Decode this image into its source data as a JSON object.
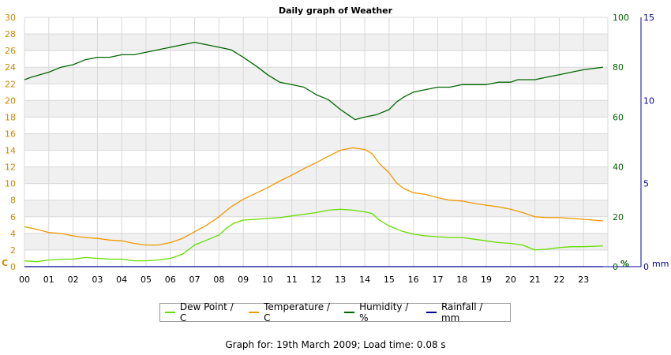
{
  "chart_data": {
    "type": "line",
    "title": "Daily graph of Weather",
    "x_ticks": [
      "00",
      "01",
      "02",
      "03",
      "04",
      "05",
      "06",
      "07",
      "08",
      "09",
      "10",
      "11",
      "12",
      "13",
      "14",
      "15",
      "16",
      "17",
      "18",
      "19",
      "20",
      "21",
      "22",
      "23"
    ],
    "axes": {
      "left": {
        "unit_label": "C",
        "ticks": [
          "0",
          "2",
          "4",
          "6",
          "8",
          "10",
          "12",
          "14",
          "16",
          "18",
          "20",
          "22",
          "24",
          "26",
          "28",
          "30"
        ],
        "range": [
          0,
          30
        ],
        "color": "#cc8800"
      },
      "right1": {
        "unit_label": "%",
        "ticks": [
          "0",
          "20",
          "40",
          "60",
          "80",
          "100"
        ],
        "range": [
          0,
          100
        ],
        "color": "#006600"
      },
      "right2": {
        "unit_label": "mm",
        "ticks": [
          "0",
          "5",
          "10",
          "15"
        ],
        "range": [
          0,
          15
        ],
        "color": "#000099"
      }
    },
    "series": [
      {
        "name": "Dew Point / C",
        "axis": "left",
        "color": "#66dd00",
        "points": [
          [
            0,
            0.7
          ],
          [
            0.5,
            0.6
          ],
          [
            1,
            0.8
          ],
          [
            1.5,
            0.9
          ],
          [
            2,
            0.9
          ],
          [
            2.5,
            1.1
          ],
          [
            3,
            1.0
          ],
          [
            3.5,
            0.9
          ],
          [
            4,
            0.9
          ],
          [
            4.5,
            0.7
          ],
          [
            5,
            0.7
          ],
          [
            5.5,
            0.8
          ],
          [
            6,
            1.0
          ],
          [
            6.5,
            1.5
          ],
          [
            7,
            2.6
          ],
          [
            7.5,
            3.2
          ],
          [
            8,
            3.8
          ],
          [
            8.3,
            4.6
          ],
          [
            8.6,
            5.2
          ],
          [
            9,
            5.6
          ],
          [
            9.5,
            5.7
          ],
          [
            10,
            5.8
          ],
          [
            10.5,
            5.9
          ],
          [
            11,
            6.1
          ],
          [
            11.5,
            6.3
          ],
          [
            12,
            6.5
          ],
          [
            12.5,
            6.8
          ],
          [
            13,
            6.9
          ],
          [
            13.5,
            6.8
          ],
          [
            14,
            6.6
          ],
          [
            14.3,
            6.4
          ],
          [
            14.6,
            5.6
          ],
          [
            15,
            4.9
          ],
          [
            15.5,
            4.3
          ],
          [
            16,
            3.9
          ],
          [
            16.5,
            3.7
          ],
          [
            17,
            3.6
          ],
          [
            17.5,
            3.5
          ],
          [
            18,
            3.5
          ],
          [
            18.5,
            3.3
          ],
          [
            19,
            3.1
          ],
          [
            19.5,
            2.9
          ],
          [
            20,
            2.8
          ],
          [
            20.5,
            2.6
          ],
          [
            21,
            2.0
          ],
          [
            21.5,
            2.1
          ],
          [
            22,
            2.3
          ],
          [
            22.5,
            2.4
          ],
          [
            23,
            2.4
          ],
          [
            23.8,
            2.5
          ]
        ]
      },
      {
        "name": "Temperature / C",
        "axis": "left",
        "color": "#ee9900",
        "points": [
          [
            0,
            4.8
          ],
          [
            0.5,
            4.5
          ],
          [
            1,
            4.1
          ],
          [
            1.5,
            4.0
          ],
          [
            2,
            3.7
          ],
          [
            2.5,
            3.5
          ],
          [
            3,
            3.4
          ],
          [
            3.5,
            3.2
          ],
          [
            4,
            3.1
          ],
          [
            4.5,
            2.8
          ],
          [
            5,
            2.6
          ],
          [
            5.5,
            2.6
          ],
          [
            6,
            2.9
          ],
          [
            6.5,
            3.4
          ],
          [
            7,
            4.2
          ],
          [
            7.5,
            5.0
          ],
          [
            8,
            6.0
          ],
          [
            8.5,
            7.2
          ],
          [
            9,
            8.1
          ],
          [
            9.5,
            8.8
          ],
          [
            10,
            9.5
          ],
          [
            10.5,
            10.3
          ],
          [
            11,
            11.0
          ],
          [
            11.5,
            11.8
          ],
          [
            12,
            12.5
          ],
          [
            12.5,
            13.3
          ],
          [
            13,
            14.0
          ],
          [
            13.5,
            14.3
          ],
          [
            14,
            14.1
          ],
          [
            14.3,
            13.6
          ],
          [
            14.6,
            12.4
          ],
          [
            15,
            11.3
          ],
          [
            15.3,
            10.1
          ],
          [
            15.6,
            9.4
          ],
          [
            16,
            8.9
          ],
          [
            16.5,
            8.7
          ],
          [
            17,
            8.3
          ],
          [
            17.5,
            8.0
          ],
          [
            18,
            7.9
          ],
          [
            18.5,
            7.6
          ],
          [
            19,
            7.4
          ],
          [
            19.5,
            7.2
          ],
          [
            20,
            6.9
          ],
          [
            20.5,
            6.5
          ],
          [
            21,
            6.0
          ],
          [
            21.5,
            5.9
          ],
          [
            22,
            5.9
          ],
          [
            22.5,
            5.8
          ],
          [
            23,
            5.7
          ],
          [
            23.8,
            5.5
          ]
        ]
      },
      {
        "name": "Humidity / %",
        "axis": "right1",
        "color": "#006600",
        "points": [
          [
            0,
            75
          ],
          [
            0.3,
            76
          ],
          [
            1,
            78
          ],
          [
            1.5,
            80
          ],
          [
            2,
            81
          ],
          [
            2.5,
            83
          ],
          [
            3,
            84
          ],
          [
            3.5,
            84
          ],
          [
            4,
            85
          ],
          [
            4.5,
            85
          ],
          [
            5,
            86
          ],
          [
            5.5,
            87
          ],
          [
            6,
            88
          ],
          [
            6.5,
            89
          ],
          [
            7,
            90
          ],
          [
            7.5,
            89
          ],
          [
            8,
            88
          ],
          [
            8.5,
            87
          ],
          [
            9,
            84
          ],
          [
            9.3,
            82
          ],
          [
            9.6,
            80
          ],
          [
            10,
            77
          ],
          [
            10.5,
            74
          ],
          [
            11,
            73
          ],
          [
            11.5,
            72
          ],
          [
            12,
            69
          ],
          [
            12.5,
            67
          ],
          [
            13,
            63
          ],
          [
            13.3,
            61
          ],
          [
            13.6,
            59
          ],
          [
            14,
            60
          ],
          [
            14.5,
            61
          ],
          [
            15,
            63
          ],
          [
            15.3,
            66
          ],
          [
            15.6,
            68
          ],
          [
            16,
            70
          ],
          [
            16.5,
            71
          ],
          [
            17,
            72
          ],
          [
            17.5,
            72
          ],
          [
            18,
            73
          ],
          [
            18.5,
            73
          ],
          [
            19,
            73
          ],
          [
            19.5,
            74
          ],
          [
            20,
            74
          ],
          [
            20.3,
            75
          ],
          [
            20.6,
            75
          ],
          [
            21,
            75
          ],
          [
            21.5,
            76
          ],
          [
            22,
            77
          ],
          [
            22.5,
            78
          ],
          [
            23,
            79
          ],
          [
            23.8,
            80
          ]
        ]
      },
      {
        "name": "Rainfall / mm",
        "axis": "right2",
        "color": "#000099",
        "points": [
          [
            0,
            0
          ],
          [
            23.8,
            0
          ]
        ]
      }
    ],
    "legend_position": "bottom",
    "grid": true
  },
  "footer": "Graph for: 19th March 2009; Load time: 0.08 s"
}
